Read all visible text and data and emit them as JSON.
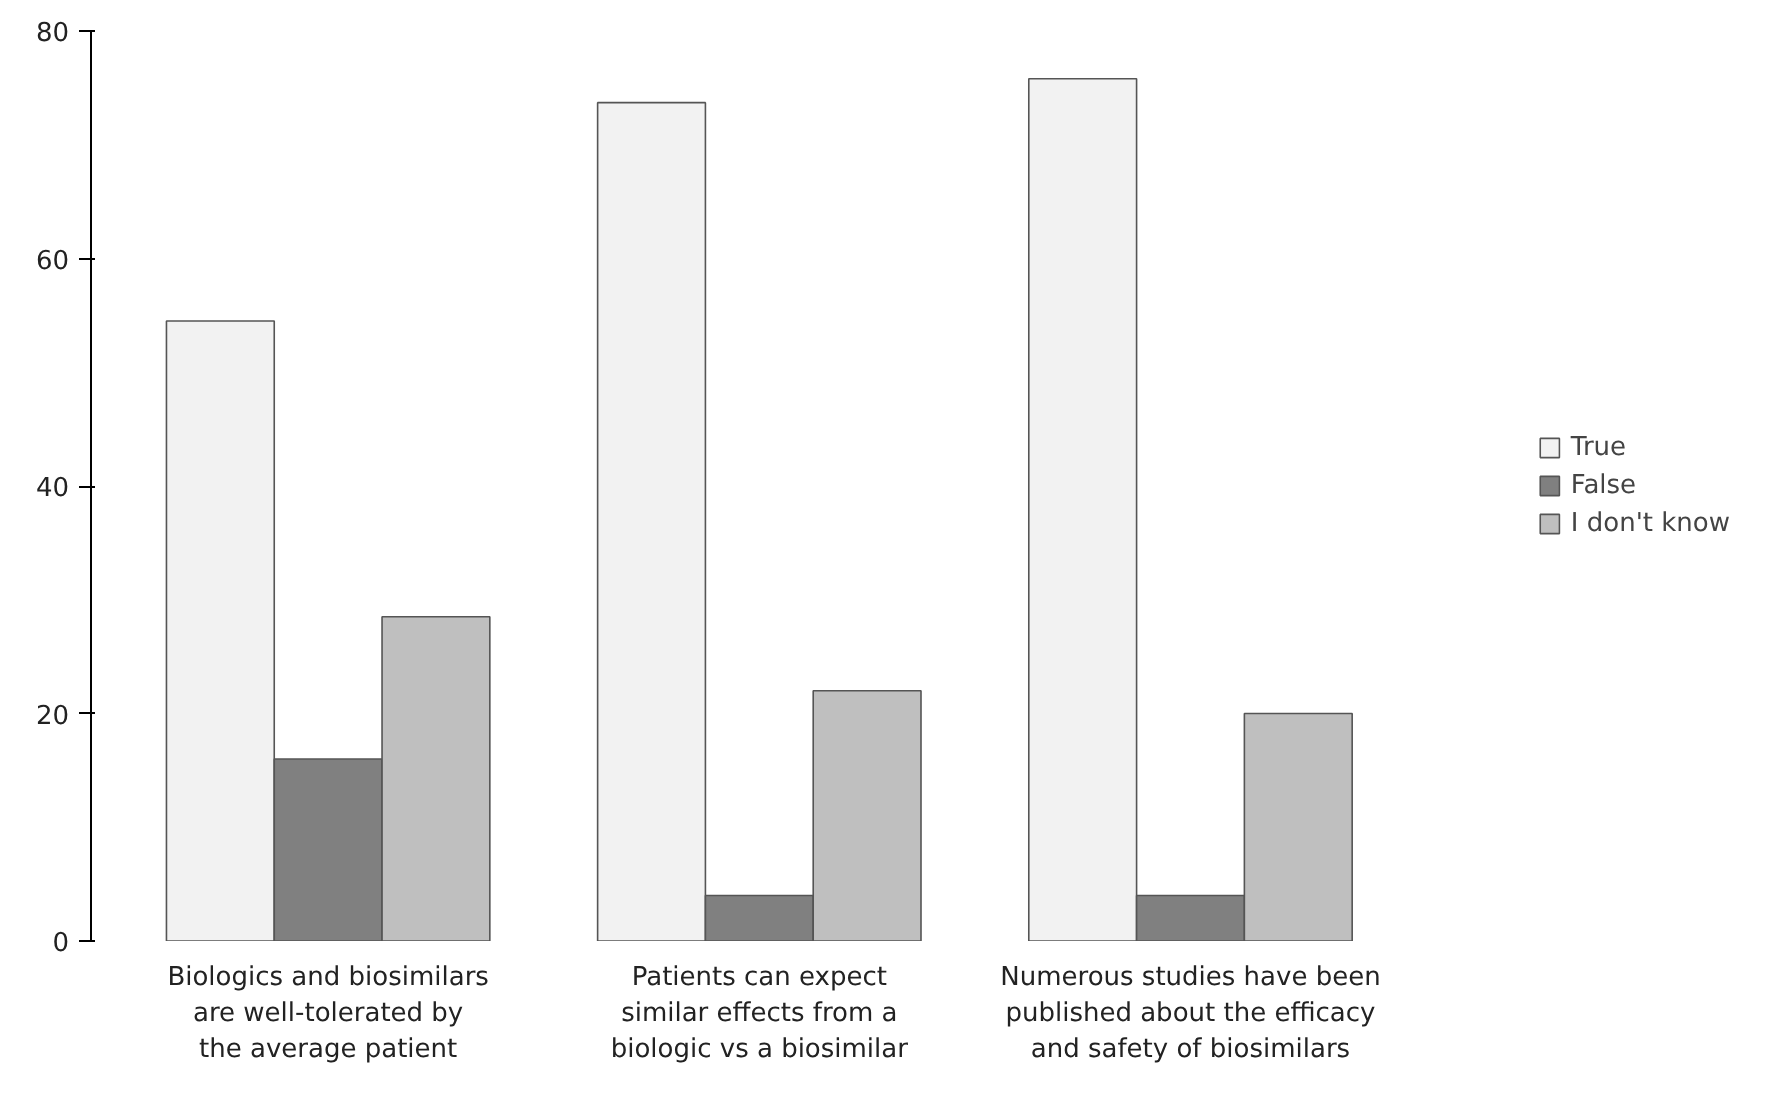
{
  "chart_data": {
    "type": "bar",
    "categories": [
      "Biologics and biosimilars\nare well-tolerated by\nthe average patient",
      "Patients can expect\nsimilar effects from a\nbiologic vs a biosimilar",
      "Numerous studies have been\npublished about the efficacy\nand safety of biosimilars"
    ],
    "series": [
      {
        "name": "True",
        "color": "#f2f2f2",
        "values": [
          54.5,
          73.7,
          75.8
        ]
      },
      {
        "name": "False",
        "color": "#808080",
        "values": [
          16,
          4,
          4
        ]
      },
      {
        "name": "I don't know",
        "color": "#bfbfbf",
        "values": [
          28.5,
          22,
          20
        ]
      }
    ],
    "ylim": [
      0,
      80
    ],
    "yticks": [
      0,
      20,
      40,
      60,
      80
    ],
    "grid": false,
    "legend": "right"
  }
}
